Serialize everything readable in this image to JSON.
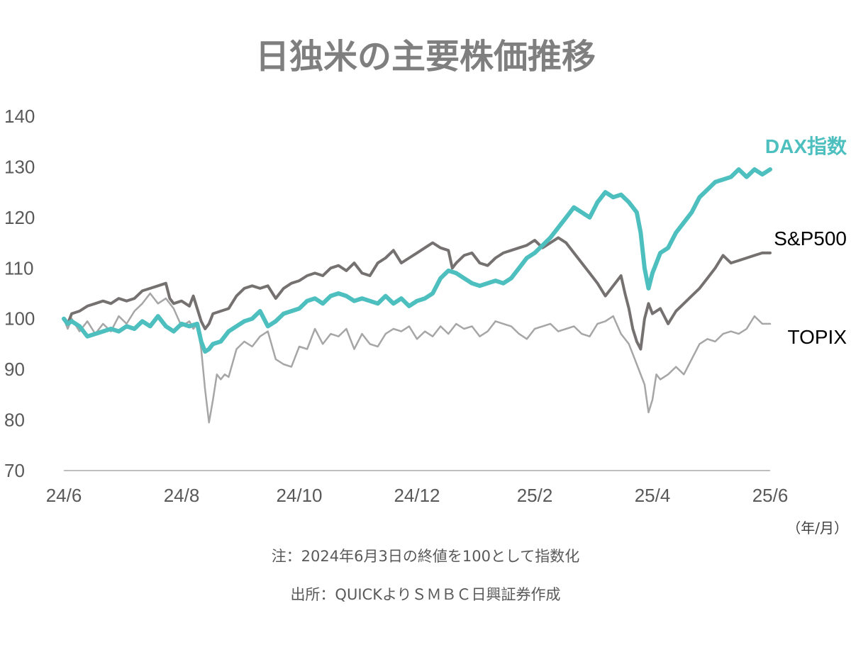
{
  "chart_data": {
    "type": "line",
    "title": "日独米の主要株価推移",
    "xlabel": "",
    "ylabel": "",
    "x_unit": "（年/月）",
    "ylim": [
      70,
      140
    ],
    "yticks": [
      70,
      80,
      90,
      100,
      110,
      120,
      130,
      140
    ],
    "x_ticks": [
      "24/6",
      "24/8",
      "24/10",
      "24/12",
      "25/2",
      "25/4",
      "25/6"
    ],
    "grid": false,
    "legend": "direct-labels-right",
    "notes": [
      "注：2024年6月3日の終値を100として指数化",
      "出所：QUICKよりＳＭＢＣ日興証券作成"
    ],
    "series": [
      {
        "name": "TOPIX",
        "color": "#a6a6a6",
        "points": [
          [
            0,
            100
          ],
          [
            0.05,
            98
          ],
          [
            0.1,
            100
          ],
          [
            0.2,
            97.5
          ],
          [
            0.3,
            99.5
          ],
          [
            0.4,
            97
          ],
          [
            0.5,
            99
          ],
          [
            0.6,
            97.5
          ],
          [
            0.7,
            100.5
          ],
          [
            0.8,
            99
          ],
          [
            0.9,
            101.5
          ],
          [
            1.0,
            103
          ],
          [
            1.1,
            105
          ],
          [
            1.2,
            103
          ],
          [
            1.3,
            104
          ],
          [
            1.4,
            102
          ],
          [
            1.5,
            98.5
          ],
          [
            1.6,
            99.5
          ],
          [
            1.65,
            98
          ],
          [
            1.7,
            99
          ],
          [
            1.75,
            94
          ],
          [
            1.8,
            86
          ],
          [
            1.85,
            79.5
          ],
          [
            1.9,
            84
          ],
          [
            1.95,
            89
          ],
          [
            2.0,
            88
          ],
          [
            2.05,
            89
          ],
          [
            2.1,
            88.5
          ],
          [
            2.2,
            94
          ],
          [
            2.3,
            95.5
          ],
          [
            2.4,
            94.5
          ],
          [
            2.5,
            96.5
          ],
          [
            2.6,
            97.5
          ],
          [
            2.7,
            92
          ],
          [
            2.8,
            91
          ],
          [
            2.9,
            90.5
          ],
          [
            3.0,
            94.5
          ],
          [
            3.1,
            94
          ],
          [
            3.2,
            98
          ],
          [
            3.3,
            95
          ],
          [
            3.4,
            97
          ],
          [
            3.5,
            96.5
          ],
          [
            3.6,
            98
          ],
          [
            3.7,
            94
          ],
          [
            3.8,
            97
          ],
          [
            3.9,
            95
          ],
          [
            4.0,
            94.5
          ],
          [
            4.1,
            97
          ],
          [
            4.2,
            98
          ],
          [
            4.3,
            97.5
          ],
          [
            4.4,
            98.5
          ],
          [
            4.5,
            96
          ],
          [
            4.6,
            97.5
          ],
          [
            4.7,
            96.5
          ],
          [
            4.8,
            98.5
          ],
          [
            4.9,
            97
          ],
          [
            5.0,
            99
          ],
          [
            5.1,
            98
          ],
          [
            5.2,
            98.5
          ],
          [
            5.3,
            96.5
          ],
          [
            5.4,
            97.5
          ],
          [
            5.5,
            99.5
          ],
          [
            5.6,
            99
          ],
          [
            5.7,
            98.5
          ],
          [
            5.8,
            97
          ],
          [
            5.9,
            96
          ],
          [
            6.0,
            98
          ],
          [
            6.1,
            98.5
          ],
          [
            6.2,
            99
          ],
          [
            6.3,
            97.5
          ],
          [
            6.4,
            98
          ],
          [
            6.5,
            98.5
          ],
          [
            6.6,
            97
          ],
          [
            6.7,
            96.5
          ],
          [
            6.8,
            99
          ],
          [
            6.9,
            99.5
          ],
          [
            7.0,
            100.5
          ],
          [
            7.1,
            97
          ],
          [
            7.2,
            95
          ],
          [
            7.3,
            91
          ],
          [
            7.4,
            87
          ],
          [
            7.45,
            81.5
          ],
          [
            7.5,
            84
          ],
          [
            7.55,
            89
          ],
          [
            7.6,
            88
          ],
          [
            7.7,
            89
          ],
          [
            7.8,
            90.5
          ],
          [
            7.9,
            89
          ],
          [
            8.0,
            92
          ],
          [
            8.1,
            95
          ],
          [
            8.2,
            96
          ],
          [
            8.3,
            95.5
          ],
          [
            8.4,
            97
          ],
          [
            8.5,
            97.5
          ],
          [
            8.6,
            97
          ],
          [
            8.7,
            98
          ],
          [
            8.8,
            100.5
          ],
          [
            8.9,
            99
          ],
          [
            9.0,
            99
          ]
        ]
      },
      {
        "name": "S&P500",
        "color": "#767171",
        "points": [
          [
            0,
            100
          ],
          [
            0.05,
            99
          ],
          [
            0.1,
            101
          ],
          [
            0.2,
            101.5
          ],
          [
            0.3,
            102.5
          ],
          [
            0.4,
            103
          ],
          [
            0.5,
            103.5
          ],
          [
            0.6,
            103
          ],
          [
            0.7,
            104
          ],
          [
            0.8,
            103.5
          ],
          [
            0.9,
            104
          ],
          [
            1.0,
            105.5
          ],
          [
            1.1,
            106
          ],
          [
            1.2,
            106.5
          ],
          [
            1.3,
            107
          ],
          [
            1.35,
            104
          ],
          [
            1.4,
            103
          ],
          [
            1.5,
            103.5
          ],
          [
            1.6,
            102.5
          ],
          [
            1.65,
            104.5
          ],
          [
            1.7,
            102
          ],
          [
            1.75,
            99.5
          ],
          [
            1.8,
            98
          ],
          [
            1.85,
            99
          ],
          [
            1.9,
            101
          ],
          [
            2.0,
            101.5
          ],
          [
            2.1,
            102
          ],
          [
            2.2,
            104.5
          ],
          [
            2.3,
            106
          ],
          [
            2.4,
            106.5
          ],
          [
            2.5,
            106
          ],
          [
            2.6,
            106.5
          ],
          [
            2.7,
            104
          ],
          [
            2.8,
            106
          ],
          [
            2.9,
            107
          ],
          [
            3.0,
            107.5
          ],
          [
            3.1,
            108.5
          ],
          [
            3.2,
            109
          ],
          [
            3.3,
            108.5
          ],
          [
            3.4,
            110
          ],
          [
            3.5,
            110.5
          ],
          [
            3.6,
            109.5
          ],
          [
            3.7,
            111
          ],
          [
            3.8,
            109
          ],
          [
            3.9,
            108.5
          ],
          [
            4.0,
            111
          ],
          [
            4.1,
            112
          ],
          [
            4.2,
            113.5
          ],
          [
            4.3,
            111
          ],
          [
            4.4,
            112
          ],
          [
            4.5,
            113
          ],
          [
            4.6,
            114
          ],
          [
            4.7,
            115
          ],
          [
            4.8,
            114
          ],
          [
            4.9,
            113.5
          ],
          [
            4.95,
            110
          ],
          [
            5.0,
            111
          ],
          [
            5.1,
            112.5
          ],
          [
            5.2,
            113
          ],
          [
            5.3,
            111
          ],
          [
            5.4,
            110.5
          ],
          [
            5.5,
            112
          ],
          [
            5.6,
            113
          ],
          [
            5.7,
            113.5
          ],
          [
            5.8,
            114
          ],
          [
            5.9,
            114.5
          ],
          [
            6.0,
            115.5
          ],
          [
            6.1,
            114
          ],
          [
            6.2,
            115
          ],
          [
            6.3,
            116
          ],
          [
            6.4,
            115
          ],
          [
            6.5,
            113
          ],
          [
            6.6,
            111
          ],
          [
            6.7,
            109
          ],
          [
            6.8,
            107
          ],
          [
            6.9,
            104.5
          ],
          [
            7.0,
            106.5
          ],
          [
            7.1,
            108.5
          ],
          [
            7.15,
            105
          ],
          [
            7.2,
            102
          ],
          [
            7.25,
            98
          ],
          [
            7.3,
            95.5
          ],
          [
            7.35,
            94
          ],
          [
            7.4,
            100
          ],
          [
            7.45,
            103
          ],
          [
            7.5,
            101
          ],
          [
            7.6,
            102
          ],
          [
            7.7,
            99
          ],
          [
            7.8,
            101.5
          ],
          [
            7.9,
            103
          ],
          [
            8.0,
            104.5
          ],
          [
            8.1,
            106
          ],
          [
            8.2,
            108
          ],
          [
            8.3,
            110
          ],
          [
            8.4,
            112.5
          ],
          [
            8.5,
            111
          ],
          [
            8.6,
            111.5
          ],
          [
            8.7,
            112
          ],
          [
            8.8,
            112.5
          ],
          [
            8.9,
            113
          ],
          [
            9.0,
            113
          ]
        ]
      },
      {
        "name": "DAX指数",
        "color": "#4dbfbf",
        "points": [
          [
            0,
            100
          ],
          [
            0.05,
            99
          ],
          [
            0.1,
            99.5
          ],
          [
            0.2,
            98.5
          ],
          [
            0.3,
            96.5
          ],
          [
            0.4,
            97
          ],
          [
            0.5,
            97.5
          ],
          [
            0.6,
            98
          ],
          [
            0.7,
            97.5
          ],
          [
            0.8,
            98.5
          ],
          [
            0.9,
            98
          ],
          [
            1.0,
            99.5
          ],
          [
            1.1,
            98.5
          ],
          [
            1.2,
            100.5
          ],
          [
            1.3,
            98.5
          ],
          [
            1.4,
            97.5
          ],
          [
            1.5,
            99
          ],
          [
            1.6,
            98.5
          ],
          [
            1.7,
            99
          ],
          [
            1.75,
            95.5
          ],
          [
            1.8,
            93.5
          ],
          [
            1.85,
            94
          ],
          [
            1.9,
            95
          ],
          [
            2.0,
            95.5
          ],
          [
            2.1,
            97.5
          ],
          [
            2.2,
            98.5
          ],
          [
            2.3,
            99.5
          ],
          [
            2.4,
            100
          ],
          [
            2.5,
            101.5
          ],
          [
            2.6,
            98.5
          ],
          [
            2.7,
            99.5
          ],
          [
            2.8,
            101
          ],
          [
            2.9,
            101.5
          ],
          [
            3.0,
            102
          ],
          [
            3.1,
            103.5
          ],
          [
            3.2,
            104
          ],
          [
            3.3,
            103
          ],
          [
            3.4,
            104.5
          ],
          [
            3.5,
            105
          ],
          [
            3.6,
            104.5
          ],
          [
            3.7,
            103.5
          ],
          [
            3.8,
            104
          ],
          [
            3.9,
            103.5
          ],
          [
            4.0,
            103
          ],
          [
            4.1,
            104.5
          ],
          [
            4.2,
            103
          ],
          [
            4.3,
            104
          ],
          [
            4.4,
            102.5
          ],
          [
            4.5,
            103.5
          ],
          [
            4.6,
            104
          ],
          [
            4.7,
            105
          ],
          [
            4.8,
            108
          ],
          [
            4.9,
            109.5
          ],
          [
            5.0,
            109
          ],
          [
            5.1,
            108
          ],
          [
            5.2,
            107
          ],
          [
            5.3,
            106.5
          ],
          [
            5.4,
            107
          ],
          [
            5.5,
            107.5
          ],
          [
            5.6,
            107
          ],
          [
            5.7,
            108
          ],
          [
            5.8,
            110
          ],
          [
            5.9,
            112
          ],
          [
            6.0,
            113
          ],
          [
            6.1,
            114.5
          ],
          [
            6.2,
            116
          ],
          [
            6.3,
            118
          ],
          [
            6.4,
            120
          ],
          [
            6.5,
            122
          ],
          [
            6.6,
            121
          ],
          [
            6.7,
            120
          ],
          [
            6.8,
            123
          ],
          [
            6.9,
            125
          ],
          [
            7.0,
            124
          ],
          [
            7.1,
            124.5
          ],
          [
            7.2,
            123
          ],
          [
            7.3,
            121
          ],
          [
            7.35,
            117
          ],
          [
            7.4,
            110
          ],
          [
            7.45,
            106
          ],
          [
            7.5,
            109
          ],
          [
            7.6,
            113
          ],
          [
            7.7,
            114
          ],
          [
            7.8,
            117
          ],
          [
            7.9,
            119
          ],
          [
            8.0,
            121
          ],
          [
            8.1,
            124
          ],
          [
            8.2,
            125.5
          ],
          [
            8.3,
            127
          ],
          [
            8.4,
            127.5
          ],
          [
            8.5,
            128
          ],
          [
            8.6,
            129.5
          ],
          [
            8.7,
            128
          ],
          [
            8.8,
            129.5
          ],
          [
            8.9,
            128.5
          ],
          [
            9.0,
            129.5
          ]
        ]
      }
    ]
  }
}
